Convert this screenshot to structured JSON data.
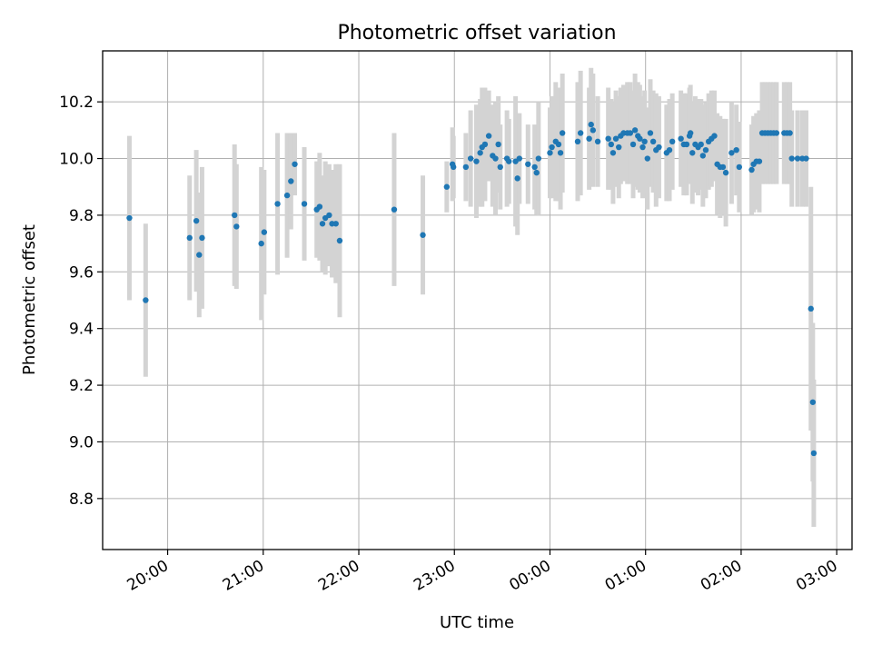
{
  "chart_data": {
    "type": "scatter",
    "title": "Photometric offset variation",
    "xlabel": "UTC time",
    "ylabel": "Photometric offset",
    "x_type": "time",
    "x_unit": "hours UTC (times after midnight written as 24 + h)",
    "xlim": [
      19.32,
      27.16
    ],
    "ylim": [
      8.62,
      10.38
    ],
    "x_ticks": [
      20,
      21,
      22,
      23,
      24,
      25,
      26,
      27
    ],
    "x_tick_labels": [
      "20:00",
      "21:00",
      "22:00",
      "23:00",
      "00:00",
      "01:00",
      "02:00",
      "03:00"
    ],
    "y_ticks": [
      8.8,
      9.0,
      9.2,
      9.4,
      9.6,
      9.8,
      10.0,
      10.2
    ],
    "y_tick_labels": [
      "8.8",
      "9.0",
      "9.2",
      "9.4",
      "9.6",
      "9.8",
      "10.0",
      "10.2"
    ],
    "grid": true,
    "legend": "none",
    "colors": {
      "points": "#1f77b4",
      "error_bars": "#d3d3d3",
      "grid": "#b0b0b0"
    },
    "series": [
      {
        "points": [
          [
            19.6,
            9.79,
            0.29
          ],
          [
            19.77,
            9.5,
            0.27
          ],
          [
            20.23,
            9.72,
            0.22
          ],
          [
            20.3,
            9.78,
            0.25
          ],
          [
            20.33,
            9.66,
            0.22
          ],
          [
            20.36,
            9.72,
            0.25
          ],
          [
            20.7,
            9.8,
            0.25
          ],
          [
            20.72,
            9.76,
            0.22
          ],
          [
            20.98,
            9.7,
            0.27
          ],
          [
            21.01,
            9.74,
            0.22
          ],
          [
            21.15,
            9.84,
            0.25
          ],
          [
            21.25,
            9.87,
            0.22
          ],
          [
            21.29,
            9.92,
            0.17
          ],
          [
            21.33,
            9.98,
            0.11
          ],
          [
            21.43,
            9.84,
            0.2
          ],
          [
            21.56,
            9.82,
            0.17
          ],
          [
            21.59,
            9.83,
            0.19
          ],
          [
            21.62,
            9.77,
            0.17
          ],
          [
            21.65,
            9.79,
            0.2
          ],
          [
            21.69,
            9.8,
            0.18
          ],
          [
            21.72,
            9.77,
            0.19
          ],
          [
            21.76,
            9.77,
            0.21
          ],
          [
            21.8,
            9.71,
            0.27
          ],
          [
            22.37,
            9.82,
            0.27
          ],
          [
            22.67,
            9.73,
            0.21
          ],
          [
            22.92,
            9.9,
            0.09
          ],
          [
            22.98,
            9.98,
            0.13
          ],
          [
            22.99,
            9.97,
            0.11
          ],
          [
            23.12,
            9.97,
            0.12
          ],
          [
            23.17,
            10.0,
            0.17
          ],
          [
            23.23,
            9.99,
            0.2
          ],
          [
            23.27,
            10.02,
            0.19
          ],
          [
            23.29,
            10.04,
            0.21
          ],
          [
            23.32,
            10.05,
            0.2
          ],
          [
            23.36,
            10.08,
            0.16
          ],
          [
            23.4,
            10.01,
            0.18
          ],
          [
            23.43,
            10.0,
            0.2
          ],
          [
            23.46,
            10.05,
            0.17
          ],
          [
            23.48,
            9.97,
            0.15
          ],
          [
            23.55,
            10.0,
            0.17
          ],
          [
            23.57,
            9.99,
            0.15
          ],
          [
            23.64,
            9.99,
            0.23
          ],
          [
            23.66,
            9.93,
            0.2
          ],
          [
            23.68,
            10.0,
            0.16
          ],
          [
            23.77,
            9.98,
            0.14
          ],
          [
            23.84,
            9.97,
            0.15
          ],
          [
            23.86,
            9.95,
            0.15
          ],
          [
            23.88,
            10.0,
            0.2
          ],
          [
            24.0,
            10.02,
            0.16
          ],
          [
            24.02,
            10.04,
            0.18
          ],
          [
            24.06,
            10.06,
            0.21
          ],
          [
            24.09,
            10.05,
            0.2
          ],
          [
            24.11,
            10.02,
            0.2
          ],
          [
            24.13,
            10.09,
            0.21
          ],
          [
            24.29,
            10.06,
            0.21
          ],
          [
            24.32,
            10.09,
            0.22
          ],
          [
            24.41,
            10.07,
            0.18
          ],
          [
            24.43,
            10.12,
            0.2
          ],
          [
            24.45,
            10.1,
            0.2
          ],
          [
            24.5,
            10.06,
            0.16
          ],
          [
            24.61,
            10.07,
            0.18
          ],
          [
            24.64,
            10.05,
            0.16
          ],
          [
            24.66,
            10.02,
            0.18
          ],
          [
            24.69,
            10.07,
            0.17
          ],
          [
            24.72,
            10.04,
            0.18
          ],
          [
            24.74,
            10.08,
            0.17
          ],
          [
            24.77,
            10.09,
            0.17
          ],
          [
            24.81,
            10.09,
            0.18
          ],
          [
            24.84,
            10.09,
            0.18
          ],
          [
            24.87,
            10.05,
            0.19
          ],
          [
            24.89,
            10.1,
            0.2
          ],
          [
            24.92,
            10.08,
            0.19
          ],
          [
            24.94,
            10.07,
            0.19
          ],
          [
            24.97,
            10.04,
            0.18
          ],
          [
            24.99,
            10.06,
            0.18
          ],
          [
            25.02,
            10.0,
            0.18
          ],
          [
            25.05,
            10.09,
            0.19
          ],
          [
            25.08,
            10.06,
            0.18
          ],
          [
            25.11,
            10.03,
            0.2
          ],
          [
            25.14,
            10.04,
            0.18
          ],
          [
            25.22,
            10.02,
            0.17
          ],
          [
            25.25,
            10.03,
            0.18
          ],
          [
            25.28,
            10.06,
            0.17
          ],
          [
            25.37,
            10.07,
            0.17
          ],
          [
            25.4,
            10.05,
            0.18
          ],
          [
            25.43,
            10.05,
            0.18
          ],
          [
            25.46,
            10.08,
            0.17
          ],
          [
            25.47,
            10.09,
            0.17
          ],
          [
            25.49,
            10.02,
            0.18
          ],
          [
            25.52,
            10.05,
            0.17
          ],
          [
            25.55,
            10.04,
            0.17
          ],
          [
            25.58,
            10.05,
            0.16
          ],
          [
            25.6,
            10.01,
            0.18
          ],
          [
            25.63,
            10.03,
            0.17
          ],
          [
            25.66,
            10.06,
            0.17
          ],
          [
            25.69,
            10.07,
            0.17
          ],
          [
            25.72,
            10.08,
            0.16
          ],
          [
            25.75,
            9.98,
            0.18
          ],
          [
            25.78,
            9.97,
            0.18
          ],
          [
            25.81,
            9.97,
            0.17
          ],
          [
            25.84,
            9.95,
            0.19
          ],
          [
            25.9,
            10.02,
            0.18
          ],
          [
            25.95,
            10.03,
            0.16
          ],
          [
            25.98,
            9.97,
            0.16
          ],
          [
            26.11,
            9.96,
            0.16
          ],
          [
            26.13,
            9.98,
            0.17
          ],
          [
            26.16,
            9.99,
            0.17
          ],
          [
            26.19,
            9.99,
            0.18
          ],
          [
            26.22,
            10.09,
            0.18
          ],
          [
            26.25,
            10.09,
            0.18
          ],
          [
            26.28,
            10.09,
            0.18
          ],
          [
            26.31,
            10.09,
            0.18
          ],
          [
            26.34,
            10.09,
            0.18
          ],
          [
            26.37,
            10.09,
            0.18
          ],
          [
            26.45,
            10.09,
            0.18
          ],
          [
            26.48,
            10.09,
            0.18
          ],
          [
            26.51,
            10.09,
            0.18
          ],
          [
            26.53,
            10.0,
            0.17
          ],
          [
            26.59,
            10.0,
            0.17
          ],
          [
            26.64,
            10.0,
            0.17
          ],
          [
            26.68,
            10.0,
            0.17
          ],
          [
            26.73,
            9.47,
            0.43
          ],
          [
            26.75,
            9.14,
            0.28
          ],
          [
            26.76,
            8.96,
            0.26
          ]
        ]
      }
    ]
  }
}
